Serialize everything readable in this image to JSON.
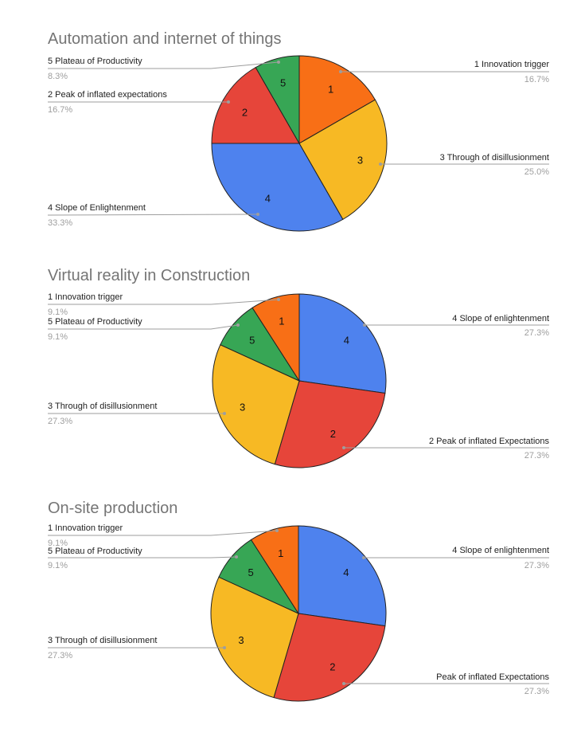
{
  "chart_data": [
    {
      "type": "pie",
      "title": "Automation and internet of things",
      "slices": [
        {
          "number": "1",
          "label": "1 Innovation trigger",
          "percent_text": "16.7%",
          "value": 16.7,
          "color": "#f86f16"
        },
        {
          "number": "3",
          "label": "3 Through of disillusionment",
          "percent_text": "25.0%",
          "value": 25.0,
          "color": "#f7b924"
        },
        {
          "number": "4",
          "label": "4 Slope of Enlightenment",
          "percent_text": "33.3%",
          "value": 33.3,
          "color": "#4e82ee"
        },
        {
          "number": "2",
          "label": "2 Peak of inflated expectations",
          "percent_text": "16.7%",
          "value": 16.7,
          "color": "#e6453a"
        },
        {
          "number": "5",
          "label": "5 Plateau of Productivity",
          "percent_text": "8.3%",
          "value": 8.3,
          "color": "#37a655"
        }
      ]
    },
    {
      "type": "pie",
      "title": "Virtual reality in Construction",
      "slices": [
        {
          "number": "4",
          "label": "4 Slope of enlightenment",
          "percent_text": "27.3%",
          "value": 27.3,
          "color": "#4e82ee"
        },
        {
          "number": "2",
          "label": "2 Peak of inflated Expectations",
          "percent_text": "27.3%",
          "value": 27.3,
          "color": "#e6453a"
        },
        {
          "number": "3",
          "label": "3 Through of disillusionment",
          "percent_text": "27.3%",
          "value": 27.3,
          "color": "#f7b924"
        },
        {
          "number": "5",
          "label": "5 Plateau of Productivity",
          "percent_text": "9.1%",
          "value": 9.1,
          "color": "#37a655"
        },
        {
          "number": "1",
          "label": "1 Innovation trigger",
          "percent_text": "9.1%",
          "value": 9.1,
          "color": "#f86f16"
        }
      ]
    },
    {
      "type": "pie",
      "title": "On-site production",
      "slices": [
        {
          "number": "4",
          "label": "4 Slope of enlightenment",
          "percent_text": "27.3%",
          "value": 27.3,
          "color": "#4e82ee"
        },
        {
          "number": "2",
          "label": "Peak of inflated Expectations",
          "percent_text": "27.3%",
          "value": 27.3,
          "color": "#e6453a"
        },
        {
          "number": "3",
          "label": "3 Through of disillusionment",
          "percent_text": "27.3%",
          "value": 27.3,
          "color": "#f7b924"
        },
        {
          "number": "5",
          "label": "5 Plateau of Productivity",
          "percent_text": "9.1%",
          "value": 9.1,
          "color": "#37a655"
        },
        {
          "number": "1",
          "label": "1 Innovation trigger",
          "percent_text": "9.1%",
          "value": 9.1,
          "color": "#f86f16"
        }
      ]
    }
  ]
}
